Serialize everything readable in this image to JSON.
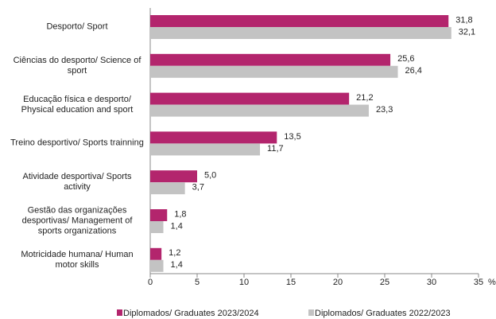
{
  "chart_data": {
    "type": "bar",
    "orientation": "horizontal",
    "categories": [
      "Desporto/ Sport",
      "Ciências do desporto/ Science of sport",
      "Educação física e desporto/ Physical education and sport",
      "Treino desportivo/ Sports trainning",
      "Atividade desportiva/ Sports activity",
      "Gestão das organizações desportivas/ Management of sports organizations",
      "Motricidade humana/ Human motor skills"
    ],
    "series": [
      {
        "name": "Diplomados/ Graduates 2023/2024",
        "color": "#b3256d",
        "values": [
          31.8,
          25.6,
          21.2,
          13.5,
          5.0,
          1.8,
          1.2
        ],
        "value_labels": [
          "31,8",
          "25,6",
          "21,2",
          "13,5",
          "5,0",
          "1,8",
          "1,2"
        ]
      },
      {
        "name": "Diplomados/ Graduates 2022/2023",
        "color": "#c3c3c3",
        "values": [
          32.1,
          26.4,
          23.3,
          11.7,
          3.7,
          1.4,
          1.4
        ],
        "value_labels": [
          "32,1",
          "26,4",
          "23,3",
          "11,7",
          "3,7",
          "1,4",
          "1,4"
        ]
      }
    ],
    "xlabel": "%",
    "xlim": [
      0,
      35
    ],
    "xticks": [
      0,
      5,
      10,
      15,
      20,
      25,
      30,
      35
    ],
    "legend": "bottom"
  }
}
